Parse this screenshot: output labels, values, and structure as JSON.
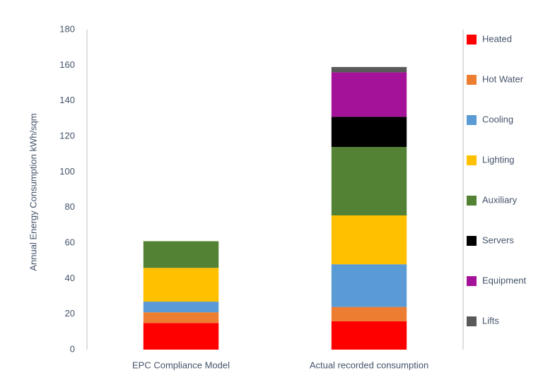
{
  "chart_data": {
    "type": "stacked-bar",
    "y_label": "Annual Energy Consumption kWh/sqm",
    "categories": [
      "EPC Compliance Model",
      "Actual recorded consumption"
    ],
    "series": [
      {
        "name": "Heated",
        "color": "#ff0000",
        "values": [
          15,
          16
        ]
      },
      {
        "name": "Hot Water",
        "color": "#ed7d31",
        "values": [
          6,
          8
        ]
      },
      {
        "name": "Cooling",
        "color": "#5b9bd5",
        "values": [
          6,
          24
        ]
      },
      {
        "name": "Lighting",
        "color": "#ffc000",
        "values": [
          19,
          27.5
        ]
      },
      {
        "name": "Auxiliary",
        "color": "#548235",
        "values": [
          15,
          38.5
        ]
      },
      {
        "name": "Servers",
        "color": "#000000",
        "values": [
          0,
          17
        ]
      },
      {
        "name": "Equipment",
        "color": "#a5129a",
        "values": [
          0,
          25
        ]
      },
      {
        "name": "Lifts",
        "color": "#595959",
        "values": [
          0,
          3
        ]
      }
    ],
    "ylim": [
      0,
      180
    ],
    "yticks": [
      0,
      20,
      40,
      60,
      80,
      100,
      120,
      140,
      160,
      180
    ],
    "grid": false,
    "legend": "right"
  }
}
